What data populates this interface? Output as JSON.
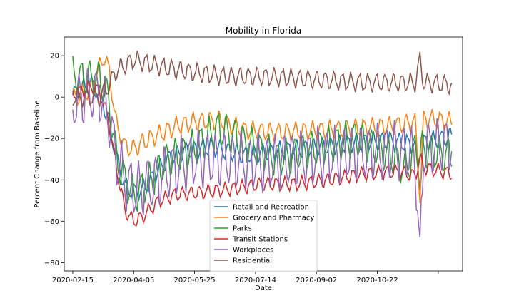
{
  "chart_data": {
    "type": "line",
    "title": "Mobility in Florida",
    "xlabel": "Date",
    "ylabel": "Percent Change from Baseline",
    "x_start": "2020-02-15",
    "x_end": "2020-12-22",
    "xlim": [
      "2020-02-08",
      "2020-12-31"
    ],
    "ylim": [
      -84,
      29
    ],
    "x_ticks": [
      "2020-02-15",
      "2020-04-05",
      "2020-05-25",
      "2020-07-14",
      "2020-09-02",
      "2020-10-22",
      "2020-12-11"
    ],
    "x_tick_labels": [
      "2020-02-15",
      "2020-04-05",
      "2020-05-25",
      "2020-07-14",
      "2020-09-02",
      "2020-10-22",
      ""
    ],
    "y_ticks": [
      20,
      0,
      -20,
      -40,
      -60,
      -80
    ],
    "y_tick_labels": [
      "20",
      "0",
      "−20",
      "−40",
      "−60",
      "−80"
    ],
    "grid": false,
    "legend_position": "lower-center",
    "series": [
      {
        "name": "Retail and Recreation",
        "color": "#1f77b4",
        "anchors": [
          [
            "2020-02-15",
            1
          ],
          [
            "2020-02-22",
            4
          ],
          [
            "2020-03-01",
            6
          ],
          [
            "2020-03-08",
            2
          ],
          [
            "2020-03-15",
            -10
          ],
          [
            "2020-03-22",
            -30
          ],
          [
            "2020-03-29",
            -43
          ],
          [
            "2020-04-05",
            -46
          ],
          [
            "2020-04-12",
            -45
          ],
          [
            "2020-04-19",
            -40
          ],
          [
            "2020-04-26",
            -35
          ],
          [
            "2020-05-03",
            -30
          ],
          [
            "2020-05-17",
            -26
          ],
          [
            "2020-06-07",
            -24
          ],
          [
            "2020-07-05",
            -28
          ],
          [
            "2020-08-02",
            -26
          ],
          [
            "2020-09-06",
            -24
          ],
          [
            "2020-10-04",
            -22
          ],
          [
            "2020-11-01",
            -21
          ],
          [
            "2020-11-22",
            -23
          ],
          [
            "2020-11-26",
            -42
          ],
          [
            "2020-11-29",
            -22
          ],
          [
            "2020-12-22",
            -19
          ]
        ],
        "weekly_amplitude": 4
      },
      {
        "name": "Grocery and Pharmacy",
        "color": "#ff7f0e",
        "anchors": [
          [
            "2020-02-15",
            0
          ],
          [
            "2020-02-29",
            3
          ],
          [
            "2020-03-12",
            20
          ],
          [
            "2020-03-16",
            12
          ],
          [
            "2020-03-22",
            -14
          ],
          [
            "2020-03-29",
            -24
          ],
          [
            "2020-04-05",
            -25
          ],
          [
            "2020-04-12",
            -22
          ],
          [
            "2020-04-26",
            -18
          ],
          [
            "2020-05-10",
            -14
          ],
          [
            "2020-05-24",
            -12
          ],
          [
            "2020-06-14",
            -11
          ],
          [
            "2020-07-05",
            -16
          ],
          [
            "2020-08-02",
            -17
          ],
          [
            "2020-09-06",
            -16
          ],
          [
            "2020-10-04",
            -15
          ],
          [
            "2020-11-01",
            -14
          ],
          [
            "2020-11-22",
            -12
          ],
          [
            "2020-11-26",
            -48
          ],
          [
            "2020-11-29",
            -10
          ],
          [
            "2020-12-22",
            -12
          ]
        ],
        "weekly_amplitude": 4
      },
      {
        "name": "Parks",
        "color": "#2ca02c",
        "anchors": [
          [
            "2020-02-15",
            10
          ],
          [
            "2020-02-29",
            9
          ],
          [
            "2020-03-08",
            9
          ],
          [
            "2020-03-15",
            0
          ],
          [
            "2020-03-22",
            -30
          ],
          [
            "2020-03-29",
            -40
          ],
          [
            "2020-04-05",
            -48
          ],
          [
            "2020-04-19",
            -40
          ],
          [
            "2020-05-03",
            -30
          ],
          [
            "2020-05-24",
            -25
          ],
          [
            "2020-06-14",
            -15
          ],
          [
            "2020-07-05",
            -22
          ],
          [
            "2020-08-02",
            -30
          ],
          [
            "2020-08-30",
            -25
          ],
          [
            "2020-10-04",
            -20
          ],
          [
            "2020-11-01",
            -28
          ],
          [
            "2020-11-15",
            -35
          ],
          [
            "2020-11-22",
            -25
          ],
          [
            "2020-12-22",
            -28
          ]
        ],
        "weekly_amplitude": 8
      },
      {
        "name": "Transit Stations",
        "color": "#d62728",
        "anchors": [
          [
            "2020-02-15",
            1
          ],
          [
            "2020-03-01",
            5
          ],
          [
            "2020-03-08",
            3
          ],
          [
            "2020-03-15",
            -10
          ],
          [
            "2020-03-22",
            -35
          ],
          [
            "2020-03-29",
            -55
          ],
          [
            "2020-04-05",
            -60
          ],
          [
            "2020-04-12",
            -58
          ],
          [
            "2020-04-26",
            -50
          ],
          [
            "2020-05-10",
            -47
          ],
          [
            "2020-05-31",
            -46
          ],
          [
            "2020-06-28",
            -44
          ],
          [
            "2020-07-19",
            -42
          ],
          [
            "2020-08-16",
            -42
          ],
          [
            "2020-09-13",
            -40
          ],
          [
            "2020-10-11",
            -37
          ],
          [
            "2020-11-08",
            -36
          ],
          [
            "2020-11-22",
            -38
          ],
          [
            "2020-11-26",
            -30
          ],
          [
            "2020-11-29",
            -34
          ],
          [
            "2020-12-22",
            -37
          ]
        ],
        "weekly_amplitude": 3
      },
      {
        "name": "Workplaces",
        "color": "#9467bd",
        "anchors": [
          [
            "2020-02-15",
            -3
          ],
          [
            "2020-02-29",
            2
          ],
          [
            "2020-03-08",
            1
          ],
          [
            "2020-03-15",
            -8
          ],
          [
            "2020-03-22",
            -30
          ],
          [
            "2020-03-29",
            -40
          ],
          [
            "2020-04-05",
            -45
          ],
          [
            "2020-04-19",
            -42
          ],
          [
            "2020-05-03",
            -36
          ],
          [
            "2020-05-24",
            -30
          ],
          [
            "2020-06-21",
            -30
          ],
          [
            "2020-07-19",
            -32
          ],
          [
            "2020-08-16",
            -30
          ],
          [
            "2020-09-13",
            -28
          ],
          [
            "2020-10-11",
            -27
          ],
          [
            "2020-11-08",
            -26
          ],
          [
            "2020-11-22",
            -28
          ],
          [
            "2020-11-26",
            -79
          ],
          [
            "2020-11-29",
            -25
          ],
          [
            "2020-12-22",
            -22
          ]
        ],
        "weekly_amplitude": 12
      },
      {
        "name": "Residential",
        "color": "#8c564b",
        "anchors": [
          [
            "2020-02-15",
            0
          ],
          [
            "2020-02-29",
            0
          ],
          [
            "2020-03-08",
            0
          ],
          [
            "2020-03-15",
            5
          ],
          [
            "2020-03-22",
            13
          ],
          [
            "2020-04-05",
            18
          ],
          [
            "2020-04-19",
            16
          ],
          [
            "2020-05-03",
            14
          ],
          [
            "2020-05-24",
            12
          ],
          [
            "2020-06-21",
            10
          ],
          [
            "2020-07-19",
            10
          ],
          [
            "2020-08-16",
            9
          ],
          [
            "2020-09-13",
            8
          ],
          [
            "2020-10-11",
            7
          ],
          [
            "2020-11-08",
            7
          ],
          [
            "2020-11-22",
            7
          ],
          [
            "2020-11-26",
            18
          ],
          [
            "2020-11-29",
            7
          ],
          [
            "2020-12-22",
            6
          ]
        ],
        "weekly_amplitude": 4
      }
    ]
  }
}
